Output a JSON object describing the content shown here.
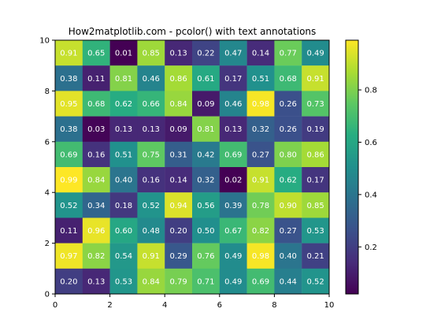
{
  "chart_data": {
    "type": "heatmap",
    "title": "How2matplotlib.com - pcolor() with text annotations",
    "xlabel": "",
    "ylabel": "",
    "xlim": [
      0,
      10
    ],
    "ylim": [
      0,
      10
    ],
    "xticks": [
      0,
      2,
      4,
      6,
      8,
      10
    ],
    "yticks": [
      0,
      2,
      4,
      6,
      8,
      10
    ],
    "grid": false,
    "colormap": "viridis",
    "colorbar": {
      "placement": "right",
      "range": [
        0.02,
        0.99
      ],
      "ticks": [
        0.2,
        0.4,
        0.6,
        0.8
      ]
    },
    "rows_top_to_bottom": [
      [
        0.91,
        0.65,
        0.01,
        0.85,
        0.13,
        0.22,
        0.47,
        0.14,
        0.77,
        0.49
      ],
      [
        0.38,
        0.11,
        0.81,
        0.46,
        0.86,
        0.61,
        0.17,
        0.51,
        0.68,
        0.91
      ],
      [
        0.95,
        0.68,
        0.62,
        0.66,
        0.84,
        0.09,
        0.46,
        0.98,
        0.26,
        0.73
      ],
      [
        0.38,
        0.03,
        0.13,
        0.13,
        0.09,
        0.81,
        0.13,
        0.32,
        0.26,
        0.19
      ],
      [
        0.69,
        0.16,
        0.51,
        0.75,
        0.31,
        0.42,
        0.69,
        0.27,
        0.8,
        0.86
      ],
      [
        0.99,
        0.84,
        0.4,
        0.16,
        0.14,
        0.32,
        0.02,
        0.91,
        0.62,
        0.17
      ],
      [
        0.52,
        0.34,
        0.18,
        0.52,
        0.94,
        0.56,
        0.39,
        0.78,
        0.9,
        0.85
      ],
      [
        0.11,
        0.96,
        0.6,
        0.48,
        0.2,
        0.5,
        0.67,
        0.82,
        0.27,
        0.53
      ],
      [
        0.97,
        0.82,
        0.54,
        0.91,
        0.29,
        0.76,
        0.49,
        0.98,
        0.4,
        0.21
      ],
      [
        0.2,
        0.13,
        0.53,
        0.84,
        0.79,
        0.71,
        0.49,
        0.69,
        0.44,
        0.52
      ]
    ]
  }
}
